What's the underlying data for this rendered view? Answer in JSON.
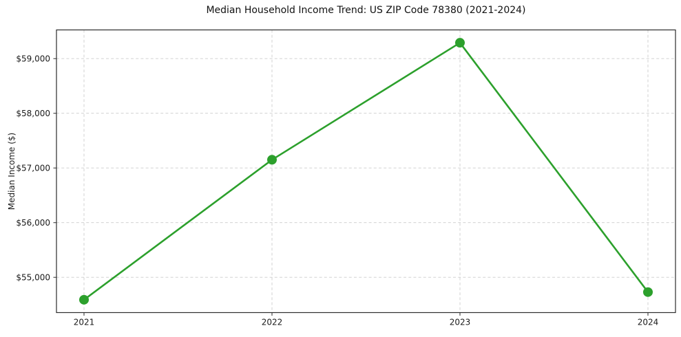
{
  "figure": {
    "title": "Median Household Income Trend: US ZIP Code 78380 (2021-2024)",
    "ylabel": "Median Income ($)"
  },
  "chart_data": {
    "type": "line",
    "title": "Median Household Income Trend: US ZIP Code 78380 (2021-2024)",
    "xlabel": "",
    "ylabel": "Median Income ($)",
    "categories": [
      "2021",
      "2022",
      "2023",
      "2024"
    ],
    "series": [
      {
        "name": "Median Household Income",
        "values": [
          54590,
          57150,
          59290,
          54730
        ]
      }
    ],
    "yticks": [
      55000,
      56000,
      57000,
      58000,
      59000
    ],
    "ytick_labels": [
      "$55,000",
      "$56,000",
      "$57,000",
      "$58,000",
      "$59,000"
    ],
    "ylim": [
      54355,
      59525
    ],
    "grid": true,
    "grid_style": "dashed",
    "legend": "none",
    "colors": {
      "line": "#2ca02c",
      "marker": "#2ca02c",
      "grid": "#cccccc",
      "spine": "#2b2b2b",
      "tick_label": "#1a1a1a",
      "background": "#ffffff"
    },
    "marker": "o"
  }
}
